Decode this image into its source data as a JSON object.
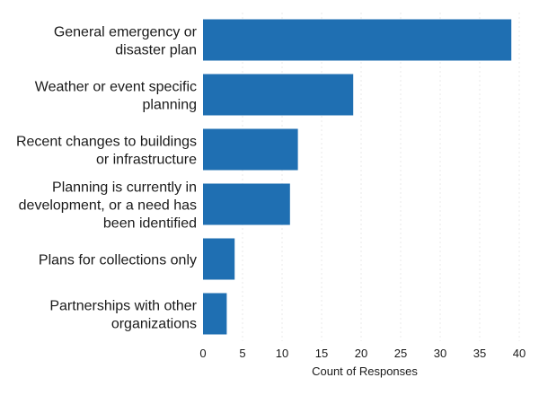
{
  "chart_data": {
    "type": "bar",
    "orientation": "horizontal",
    "categories": [
      "General emergency or disaster plan",
      "Weather or event specific planning",
      "Recent changes to buildings or infrastructure",
      "Planning is currently in development, or a need has been identified",
      "Plans for collections only",
      "Partnerships with other organizations"
    ],
    "category_label_lines": [
      [
        "General emergency or",
        "disaster plan"
      ],
      [
        "Weather or event specific",
        "planning"
      ],
      [
        "Recent changes to buildings",
        "or infrastructure"
      ],
      [
        "Planning is currently in",
        "development, or a need has",
        "been identified"
      ],
      [
        "Plans for collections only"
      ],
      [
        "Partnerships with other",
        "organizations"
      ]
    ],
    "values": [
      39,
      19,
      12,
      11,
      4,
      3
    ],
    "title": "",
    "xlabel": "Count of Responses",
    "ylabel": "",
    "xlim": [
      0,
      40
    ],
    "x_ticks": [
      0,
      5,
      10,
      15,
      20,
      25,
      30,
      35,
      40
    ],
    "grid": "vertical",
    "legend": "none",
    "bar_color": "#1f6fb2"
  }
}
